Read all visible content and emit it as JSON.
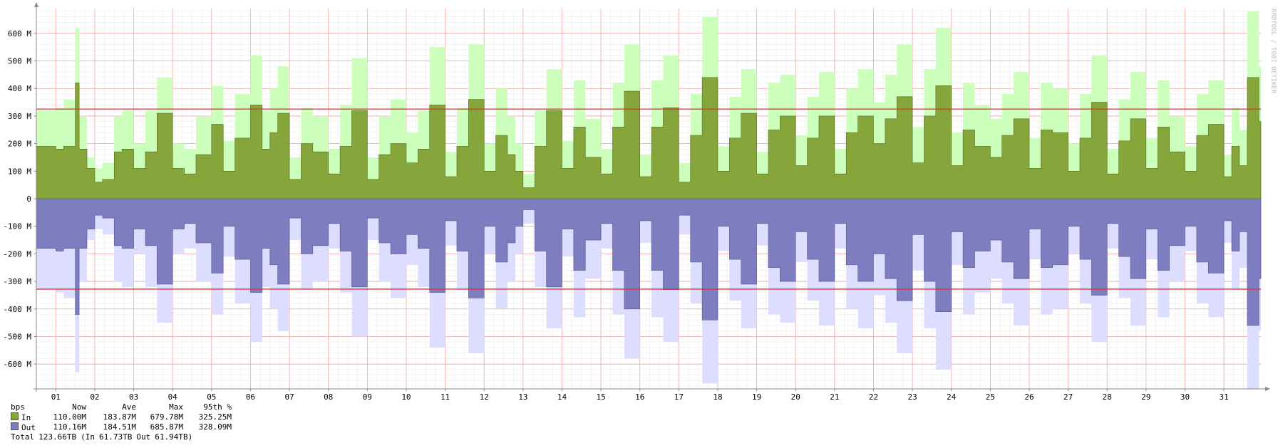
{
  "chart_data": {
    "type": "area",
    "unit": "bps",
    "y_tick_labels": [
      "600 M",
      "500 M",
      "400 M",
      "300 M",
      "200 M",
      "100 M",
      "0",
      "-100 M",
      "-200 M",
      "-300 M",
      "-400 M",
      "-500 M",
      "-600 M"
    ],
    "y_ticks": [
      600,
      500,
      400,
      300,
      200,
      100,
      0,
      -100,
      -200,
      -300,
      -400,
      -500,
      -600
    ],
    "ylim": [
      -690,
      690
    ],
    "x_tick_labels": [
      "01",
      "02",
      "03",
      "04",
      "05",
      "06",
      "07",
      "08",
      "09",
      "10",
      "11",
      "12",
      "13",
      "14",
      "15",
      "16",
      "17",
      "18",
      "19",
      "20",
      "21",
      "22",
      "23",
      "24",
      "25",
      "26",
      "27",
      "28",
      "29",
      "30",
      "31"
    ],
    "xlim": [
      0.5,
      31.95
    ],
    "percentile_95_in": 325.25,
    "percentile_95_out": 328.09,
    "watermark": "RRDTOOL / TOBI OETIKER",
    "series": [
      {
        "name": "In",
        "color": "#86a63c",
        "max_color": "#ccffbb",
        "x": [
          0.5,
          1.0,
          1.2,
          1.5,
          1.6,
          1.8,
          2.0,
          2.2,
          2.5,
          2.7,
          3.0,
          3.3,
          3.6,
          4.0,
          4.3,
          4.6,
          5.0,
          5.3,
          5.6,
          6.0,
          6.3,
          6.5,
          6.7,
          7.0,
          7.3,
          7.6,
          8.0,
          8.3,
          8.6,
          9.0,
          9.3,
          9.6,
          10.0,
          10.3,
          10.6,
          11.0,
          11.3,
          11.6,
          12.0,
          12.3,
          12.6,
          12.8,
          13.0,
          13.3,
          13.6,
          14.0,
          14.3,
          14.6,
          15.0,
          15.3,
          15.6,
          16.0,
          16.3,
          16.6,
          17.0,
          17.3,
          17.6,
          18.0,
          18.3,
          18.6,
          19.0,
          19.3,
          19.6,
          20.0,
          20.3,
          20.6,
          21.0,
          21.3,
          21.6,
          22.0,
          22.3,
          22.6,
          23.0,
          23.3,
          23.6,
          24.0,
          24.3,
          24.6,
          25.0,
          25.3,
          25.6,
          26.0,
          26.3,
          26.6,
          27.0,
          27.3,
          27.6,
          28.0,
          28.3,
          28.6,
          29.0,
          29.3,
          29.6,
          30.0,
          30.3,
          30.6,
          31.0,
          31.2,
          31.4,
          31.6,
          31.9
        ],
        "values": [
          190,
          180,
          190,
          420,
          180,
          110,
          60,
          70,
          170,
          180,
          110,
          170,
          310,
          110,
          90,
          160,
          270,
          100,
          220,
          340,
          180,
          240,
          310,
          70,
          200,
          170,
          90,
          190,
          320,
          70,
          160,
          200,
          130,
          180,
          340,
          80,
          190,
          360,
          100,
          230,
          160,
          100,
          40,
          190,
          320,
          110,
          260,
          150,
          90,
          260,
          390,
          80,
          260,
          330,
          60,
          230,
          440,
          100,
          220,
          310,
          90,
          250,
          300,
          120,
          220,
          300,
          90,
          240,
          300,
          200,
          290,
          370,
          130,
          300,
          410,
          120,
          250,
          190,
          150,
          230,
          290,
          110,
          250,
          240,
          100,
          220,
          350,
          90,
          210,
          290,
          110,
          260,
          170,
          100,
          230,
          270,
          80,
          190,
          120,
          440,
          280
        ],
        "max_values": [
          320,
          330,
          360,
          620,
          300,
          150,
          110,
          130,
          300,
          320,
          200,
          320,
          440,
          200,
          180,
          300,
          410,
          210,
          380,
          520,
          320,
          400,
          480,
          150,
          330,
          300,
          180,
          340,
          510,
          150,
          300,
          360,
          240,
          320,
          550,
          170,
          330,
          560,
          200,
          400,
          300,
          200,
          90,
          320,
          470,
          210,
          430,
          290,
          180,
          420,
          560,
          160,
          430,
          520,
          130,
          380,
          660,
          190,
          370,
          470,
          170,
          420,
          450,
          230,
          370,
          460,
          180,
          400,
          470,
          350,
          450,
          560,
          260,
          470,
          620,
          240,
          420,
          340,
          290,
          380,
          460,
          220,
          420,
          400,
          200,
          380,
          520,
          180,
          360,
          460,
          220,
          430,
          300,
          190,
          380,
          430,
          160,
          330,
          250,
          680,
          480
        ]
      },
      {
        "name": "Out",
        "color": "#7d7dbf",
        "max_color": "#ddddff",
        "values": [
          -180,
          -190,
          -180,
          -420,
          -180,
          -110,
          -60,
          -70,
          -170,
          -180,
          -110,
          -170,
          -310,
          -110,
          -90,
          -160,
          -270,
          -100,
          -220,
          -340,
          -180,
          -240,
          -310,
          -70,
          -200,
          -170,
          -90,
          -190,
          -320,
          -70,
          -160,
          -200,
          -130,
          -180,
          -340,
          -80,
          -190,
          -360,
          -100,
          -230,
          -160,
          -100,
          -40,
          -190,
          -320,
          -110,
          -260,
          -150,
          -90,
          -260,
          -400,
          -80,
          -260,
          -330,
          -60,
          -230,
          -440,
          -100,
          -220,
          -310,
          -90,
          -250,
          -300,
          -120,
          -220,
          -300,
          -90,
          -240,
          -300,
          -200,
          -290,
          -370,
          -130,
          -300,
          -410,
          -120,
          -250,
          -190,
          -150,
          -230,
          -290,
          -110,
          -250,
          -240,
          -100,
          -220,
          -350,
          -90,
          -210,
          -290,
          -110,
          -260,
          -170,
          -100,
          -230,
          -270,
          -80,
          -190,
          -120,
          -460,
          -290
        ],
        "max_values": [
          -330,
          -340,
          -360,
          -630,
          -300,
          -150,
          -110,
          -130,
          -300,
          -320,
          -200,
          -320,
          -450,
          -200,
          -180,
          -300,
          -420,
          -210,
          -380,
          -520,
          -320,
          -400,
          -480,
          -150,
          -330,
          -300,
          -180,
          -340,
          -500,
          -150,
          -300,
          -360,
          -240,
          -320,
          -540,
          -170,
          -330,
          -560,
          -200,
          -400,
          -300,
          -200,
          -90,
          -320,
          -470,
          -210,
          -430,
          -290,
          -180,
          -420,
          -580,
          -160,
          -430,
          -520,
          -130,
          -380,
          -670,
          -190,
          -370,
          -470,
          -170,
          -420,
          -450,
          -230,
          -370,
          -460,
          -180,
          -400,
          -470,
          -350,
          -450,
          -560,
          -260,
          -470,
          -620,
          -240,
          -420,
          -340,
          -290,
          -380,
          -460,
          -220,
          -420,
          -400,
          -200,
          -380,
          -520,
          -180,
          -360,
          -460,
          -220,
          -430,
          -300,
          -190,
          -380,
          -430,
          -160,
          -330,
          -250,
          -690,
          -480
        ]
      }
    ]
  },
  "legend": {
    "header": {
      "label": "bps",
      "now": "Now",
      "ave": "Ave",
      "max": "Max",
      "p95": "95th %"
    },
    "rows": [
      {
        "label": "In",
        "now": "110.00M",
        "ave": "183.87M",
        "max": "679.78M",
        "p95": "325.25M",
        "color": "#86a63c"
      },
      {
        "label": "Out",
        "now": "110.16M",
        "ave": "184.51M",
        "max": "685.87M",
        "p95": "328.09M",
        "color": "#7d7dbf"
      }
    ],
    "total": {
      "label": "Total",
      "value": "123.66TB",
      "in_label": "(In",
      "in_value": "61.73TB",
      "out_label": "Out",
      "out_value": "61.94TB)"
    }
  }
}
